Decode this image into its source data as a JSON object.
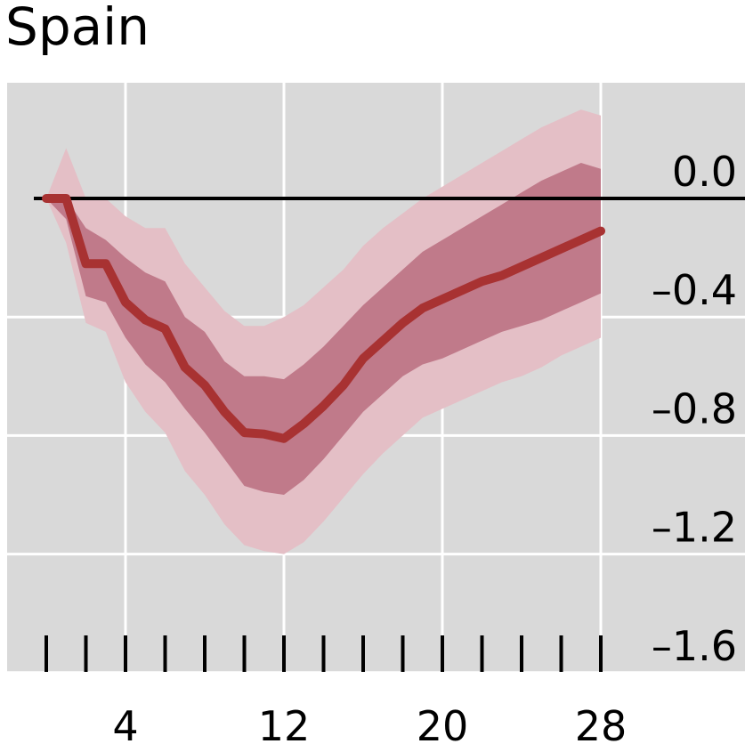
{
  "chart_data": {
    "type": "line",
    "title": "Spain",
    "xlabel": "",
    "ylabel": "",
    "x_ticks": [
      4,
      12,
      20,
      28
    ],
    "y_ticks": [
      "0.0",
      "–0.4",
      "–0.8",
      "–1.2",
      "–1.6"
    ],
    "y_tick_values": [
      0.0,
      -0.4,
      -0.8,
      -1.2,
      -1.6
    ],
    "xlim": [
      -1,
      36
    ],
    "ylim": [
      -1.6,
      0.39
    ],
    "grid": true,
    "y_axis_position": "right",
    "series": [
      {
        "role": "median",
        "x": [
          0,
          1,
          2,
          3,
          4,
          5,
          6,
          7,
          8,
          9,
          10,
          11,
          12,
          13,
          14,
          15,
          16,
          17,
          18,
          19,
          20,
          21,
          22,
          23,
          24,
          25,
          26,
          27,
          28
        ],
        "values": [
          0,
          0,
          -0.22,
          -0.22,
          -0.35,
          -0.41,
          -0.44,
          -0.57,
          -0.63,
          -0.72,
          -0.79,
          -0.795,
          -0.81,
          -0.76,
          -0.7,
          -0.63,
          -0.54,
          -0.48,
          -0.42,
          -0.37,
          -0.34,
          -0.31,
          -0.28,
          -0.26,
          -0.23,
          -0.2,
          -0.17,
          -0.14,
          -0.11
        ],
        "color": "#a83232"
      },
      {
        "role": "inner-band",
        "upper": [
          0,
          0,
          -0.1,
          -0.14,
          -0.2,
          -0.25,
          -0.28,
          -0.4,
          -0.45,
          -0.55,
          -0.6,
          -0.6,
          -0.61,
          -0.56,
          -0.5,
          -0.43,
          -0.36,
          -0.3,
          -0.24,
          -0.18,
          -0.14,
          -0.1,
          -0.06,
          -0.02,
          0.02,
          0.06,
          0.09,
          0.12,
          0.1
        ],
        "lower": [
          0,
          -0.07,
          -0.33,
          -0.35,
          -0.47,
          -0.56,
          -0.62,
          -0.71,
          -0.79,
          -0.88,
          -0.97,
          -0.99,
          -1.0,
          -0.95,
          -0.88,
          -0.8,
          -0.72,
          -0.66,
          -0.6,
          -0.56,
          -0.54,
          -0.51,
          -0.48,
          -0.45,
          -0.43,
          -0.41,
          -0.38,
          -0.35,
          -0.32
        ],
        "color": "#c07a8a"
      },
      {
        "role": "outer-band",
        "upper": [
          0,
          0.17,
          0.0,
          0.0,
          -0.06,
          -0.1,
          -0.1,
          -0.22,
          -0.3,
          -0.38,
          -0.43,
          -0.43,
          -0.4,
          -0.36,
          -0.3,
          -0.24,
          -0.16,
          -0.1,
          -0.05,
          0.0,
          0.04,
          0.08,
          0.12,
          0.16,
          0.2,
          0.24,
          0.27,
          0.3,
          0.28
        ],
        "lower": [
          0,
          -0.15,
          -0.42,
          -0.45,
          -0.62,
          -0.72,
          -0.79,
          -0.92,
          -1.0,
          -1.1,
          -1.17,
          -1.19,
          -1.2,
          -1.16,
          -1.09,
          -1.01,
          -0.93,
          -0.86,
          -0.8,
          -0.74,
          -0.71,
          -0.68,
          -0.65,
          -0.62,
          -0.6,
          -0.57,
          -0.53,
          -0.5,
          -0.47
        ],
        "color": "#e4bfc6"
      }
    ]
  }
}
